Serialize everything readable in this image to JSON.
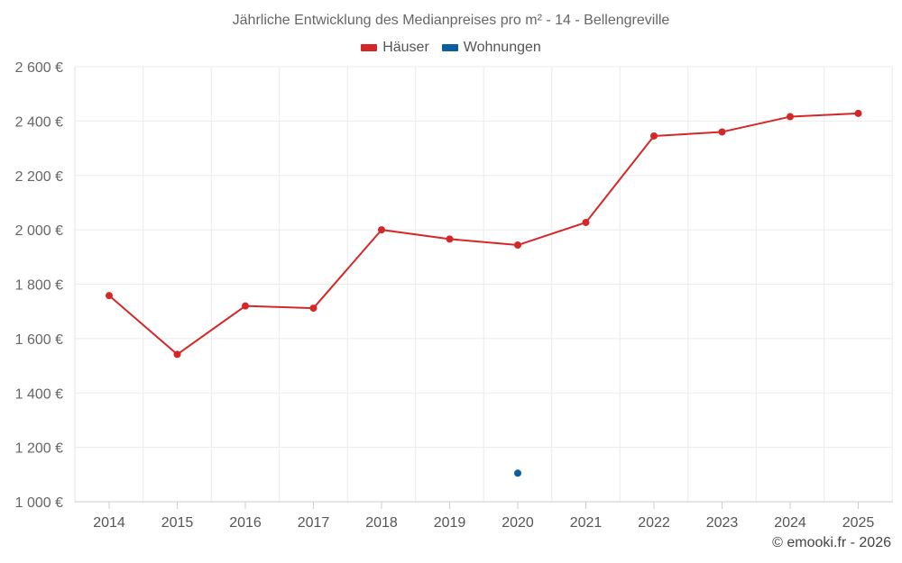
{
  "chart_data": {
    "type": "line",
    "title": "Jährliche Entwicklung des Medianpreises pro m² - 14 - Bellengreville",
    "categories": [
      "2014",
      "2015",
      "2016",
      "2017",
      "2018",
      "2019",
      "2020",
      "2021",
      "2022",
      "2023",
      "2024",
      "2025"
    ],
    "y_ticks": [
      "1 000 €",
      "1 200 €",
      "1 400 €",
      "1 600 €",
      "1 800 €",
      "2 000 €",
      "2 200 €",
      "2 400 €",
      "2 600 €"
    ],
    "ylim": [
      1000,
      2600
    ],
    "grid": true,
    "legend_position": "top-center",
    "series": [
      {
        "name": "Häuser",
        "color": "#d62728",
        "values": [
          1758,
          1542,
          1720,
          1712,
          2000,
          1966,
          1944,
          2027,
          2345,
          2360,
          2416,
          2428
        ]
      },
      {
        "name": "Wohnungen",
        "color": "#0a5f9e",
        "values": [
          null,
          null,
          null,
          null,
          null,
          null,
          1105,
          null,
          null,
          null,
          null,
          null
        ]
      }
    ]
  },
  "credit": "© emooki.fr - 2026"
}
